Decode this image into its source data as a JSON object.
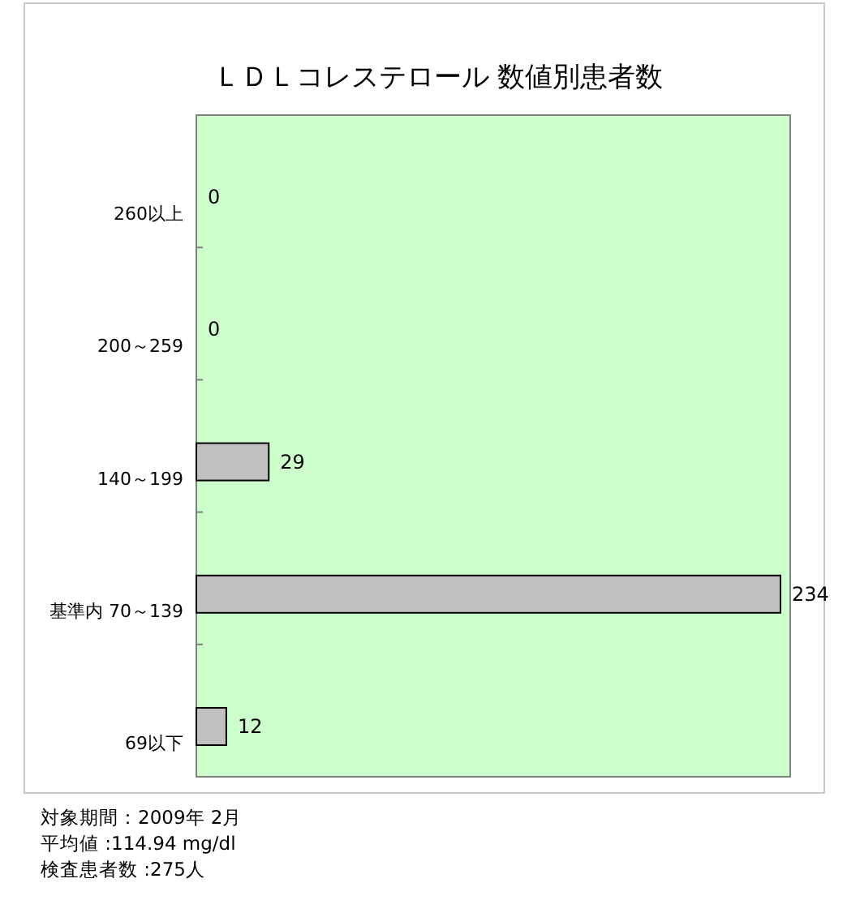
{
  "chart_data": {
    "type": "bar",
    "orientation": "horizontal",
    "title": "ＬＤＬコレステロール 数値別患者数",
    "categories": [
      "260以上",
      "200～259",
      "140～199",
      "基準内 70～139",
      "69以下"
    ],
    "values": [
      0,
      0,
      29,
      234,
      12
    ],
    "color": "#c0c0c0",
    "data_labels": true,
    "grid": false,
    "annotations": [
      "対象期間：2009年 2月",
      "平均値 :114.94 mg/dl",
      "検査患者数 :275人"
    ]
  }
}
